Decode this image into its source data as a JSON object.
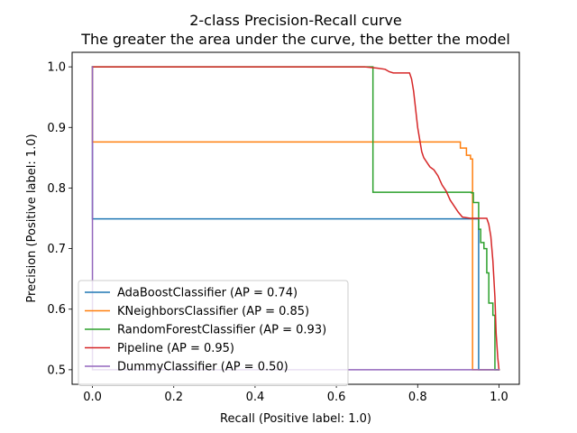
{
  "chart_data": {
    "type": "line",
    "title": "2-class Precision-Recall curve",
    "subtitle": "The greater the area under the curve, the better the model",
    "xlabel": "Recall (Positive label: 1.0)",
    "ylabel": "Precision (Positive label: 1.0)",
    "xlim": [
      -0.05,
      1.05
    ],
    "ylim": [
      0.476,
      1.024
    ],
    "xticks": [
      0.0,
      0.2,
      0.4,
      0.6,
      0.8,
      1.0
    ],
    "xtick_labels": [
      "0.0",
      "0.2",
      "0.4",
      "0.6",
      "0.8",
      "1.0"
    ],
    "yticks": [
      0.5,
      0.6,
      0.7,
      0.8,
      0.9,
      1.0
    ],
    "ytick_labels": [
      "0.5",
      "0.6",
      "0.7",
      "0.8",
      "0.9",
      "1.0"
    ],
    "grid": false,
    "legend_position": "lower-left",
    "series": [
      {
        "name": "AdaBoostClassifier (AP = 0.74)",
        "color": "#1f77b4",
        "step": true,
        "points": [
          [
            0.0,
            1.0
          ],
          [
            0.0,
            0.749
          ],
          [
            0.95,
            0.749
          ],
          [
            0.95,
            0.5
          ],
          [
            1.0,
            0.5
          ]
        ]
      },
      {
        "name": "KNeighborsClassifier (AP = 0.85)",
        "color": "#ff7f0e",
        "step": true,
        "points": [
          [
            0.0,
            1.0
          ],
          [
            0.0,
            0.876
          ],
          [
            0.905,
            0.876
          ],
          [
            0.905,
            0.866
          ],
          [
            0.92,
            0.866
          ],
          [
            0.92,
            0.854
          ],
          [
            0.93,
            0.854
          ],
          [
            0.93,
            0.848
          ],
          [
            0.935,
            0.848
          ],
          [
            0.935,
            0.5
          ],
          [
            1.0,
            0.5
          ]
        ]
      },
      {
        "name": "RandomForestClassifier (AP = 0.93)",
        "color": "#2ca02c",
        "step": true,
        "points": [
          [
            0.0,
            1.0
          ],
          [
            0.69,
            1.0
          ],
          [
            0.69,
            0.793
          ],
          [
            0.932,
            0.793
          ],
          [
            0.932,
            0.792
          ],
          [
            0.937,
            0.792
          ],
          [
            0.937,
            0.776
          ],
          [
            0.95,
            0.776
          ],
          [
            0.95,
            0.732
          ],
          [
            0.955,
            0.732
          ],
          [
            0.955,
            0.71
          ],
          [
            0.963,
            0.71
          ],
          [
            0.963,
            0.7
          ],
          [
            0.97,
            0.7
          ],
          [
            0.97,
            0.66
          ],
          [
            0.975,
            0.66
          ],
          [
            0.975,
            0.61
          ],
          [
            0.985,
            0.61
          ],
          [
            0.985,
            0.59
          ],
          [
            0.99,
            0.59
          ],
          [
            0.99,
            0.5
          ],
          [
            1.0,
            0.5
          ]
        ]
      },
      {
        "name": "Pipeline (AP = 0.95)",
        "color": "#d62728",
        "step": true,
        "points": [
          [
            0.0,
            1.0
          ],
          [
            0.3,
            1.0
          ],
          [
            0.5,
            1.0
          ],
          [
            0.67,
            1.0
          ],
          [
            0.7,
            0.998
          ],
          [
            0.72,
            0.996
          ],
          [
            0.73,
            0.992
          ],
          [
            0.74,
            0.99
          ],
          [
            0.78,
            0.99
          ],
          [
            0.785,
            0.98
          ],
          [
            0.79,
            0.96
          ],
          [
            0.795,
            0.93
          ],
          [
            0.8,
            0.9
          ],
          [
            0.805,
            0.88
          ],
          [
            0.81,
            0.86
          ],
          [
            0.815,
            0.85
          ],
          [
            0.82,
            0.845
          ],
          [
            0.83,
            0.835
          ],
          [
            0.84,
            0.83
          ],
          [
            0.85,
            0.82
          ],
          [
            0.86,
            0.805
          ],
          [
            0.87,
            0.795
          ],
          [
            0.88,
            0.78
          ],
          [
            0.89,
            0.77
          ],
          [
            0.9,
            0.76
          ],
          [
            0.91,
            0.752
          ],
          [
            0.93,
            0.75
          ],
          [
            0.95,
            0.75
          ],
          [
            0.97,
            0.75
          ],
          [
            0.975,
            0.74
          ],
          [
            0.98,
            0.72
          ],
          [
            0.985,
            0.68
          ],
          [
            0.99,
            0.62
          ],
          [
            0.993,
            0.56
          ],
          [
            0.997,
            0.52
          ],
          [
            1.0,
            0.5
          ]
        ]
      },
      {
        "name": "DummyClassifier (AP = 0.50)",
        "color": "#9467bd",
        "step": true,
        "points": [
          [
            0.0,
            1.0
          ],
          [
            0.0,
            0.5
          ],
          [
            1.0,
            0.5
          ]
        ]
      }
    ]
  }
}
